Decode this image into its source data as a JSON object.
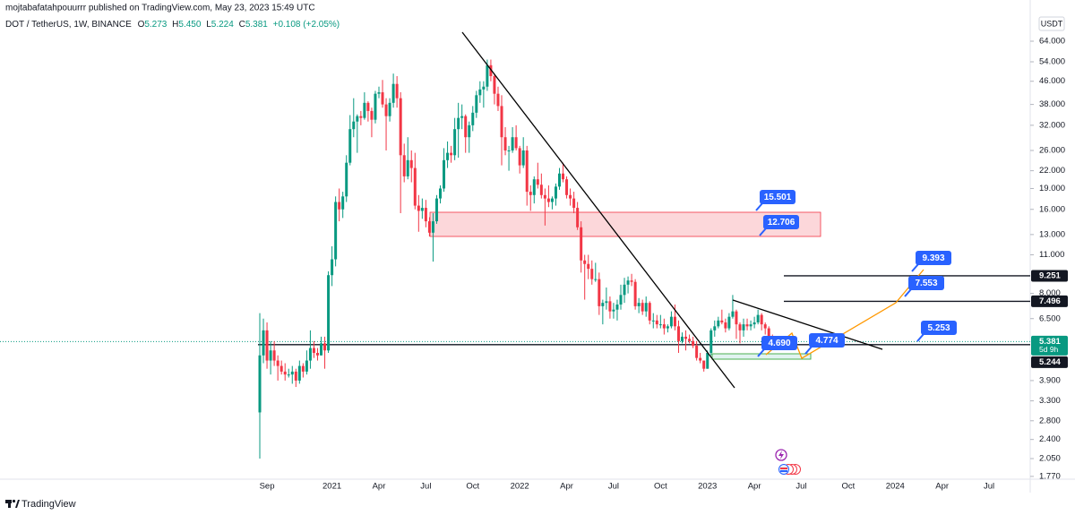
{
  "header": {
    "byline": "mojtabafatahpouurrr published on TradingView.com, May 23, 2023 15:49 UTC",
    "symbol": "DOT / TetherUS, 1W, BINANCE",
    "ohlc": [
      {
        "key": "O",
        "value": "5.273"
      },
      {
        "key": "H",
        "value": "5.450"
      },
      {
        "key": "L",
        "value": "5.224"
      },
      {
        "key": "C",
        "value": "5.381"
      }
    ],
    "change": "+0.108 (+2.05%)",
    "brand": "TradingView"
  },
  "chart_data": {
    "type": "candlestick",
    "currency": "USDT",
    "log_scale": true,
    "up_color": "#089981",
    "down_color": "#f23645",
    "ylim": [
      1.73,
      78.7
    ],
    "yticks": [
      {
        "value": 1.77,
        "label": "1.770"
      },
      {
        "value": 2.05,
        "label": "2.050"
      },
      {
        "value": 2.4,
        "label": "2.400"
      },
      {
        "value": 2.8,
        "label": "2.800"
      },
      {
        "value": 3.3,
        "label": "3.300"
      },
      {
        "value": 3.9,
        "label": "3.900"
      },
      {
        "value": 6.5,
        "label": "6.500"
      },
      {
        "value": 8,
        "label": "8.000"
      },
      {
        "value": 11,
        "label": "11.000"
      },
      {
        "value": 13,
        "label": "13.000"
      },
      {
        "value": 16,
        "label": "16.000"
      },
      {
        "value": 19,
        "label": "19.000"
      },
      {
        "value": 22,
        "label": "22.000"
      },
      {
        "value": 26,
        "label": "26.000"
      },
      {
        "value": 32,
        "label": "32.000"
      },
      {
        "value": 38,
        "label": "38.000"
      },
      {
        "value": 46,
        "label": "46.000"
      },
      {
        "value": 54,
        "label": "54.000"
      },
      {
        "value": 64,
        "label": "64.000"
      }
    ],
    "categories": [
      null,
      null,
      "Sep",
      null,
      null,
      null,
      null,
      null,
      null,
      null,
      null,
      null,
      null,
      null,
      null,
      null,
      null,
      null,
      null,
      null,
      "2021",
      null,
      null,
      null,
      null,
      null,
      null,
      null,
      null,
      null,
      null,
      null,
      null,
      "Apr",
      null,
      null,
      null,
      null,
      null,
      null,
      null,
      null,
      null,
      null,
      null,
      null,
      "Jul",
      null,
      null,
      null,
      null,
      null,
      null,
      null,
      null,
      null,
      null,
      null,
      null,
      "Oct",
      null,
      null,
      null,
      null,
      null,
      null,
      null,
      null,
      null,
      null,
      null,
      null,
      "2022",
      null,
      null,
      null,
      null,
      null,
      null,
      null,
      null,
      null,
      null,
      null,
      null,
      "Apr",
      null,
      null,
      null,
      null,
      null,
      null,
      null,
      null,
      null,
      null,
      null,
      null,
      "Jul",
      null,
      null,
      null,
      null,
      null,
      null,
      null,
      null,
      null,
      null,
      null,
      null,
      "Oct",
      null,
      null,
      null,
      null,
      null,
      null,
      null,
      null,
      null,
      null,
      null,
      null,
      "2023",
      null,
      null,
      null,
      null,
      null,
      null,
      null,
      null,
      null,
      null,
      null,
      null,
      "Apr",
      null,
      null,
      null,
      null,
      null,
      null,
      null,
      null,
      null,
      null,
      null,
      null,
      "Jul",
      null,
      null,
      null,
      null,
      null,
      null,
      null,
      null,
      null,
      null,
      null,
      null,
      "Oct",
      null,
      null,
      null,
      null,
      null,
      null,
      null,
      null,
      null,
      null,
      null,
      null,
      "2024",
      null,
      null,
      null,
      null,
      null,
      null,
      null,
      null,
      null,
      null,
      null,
      null,
      "Apr",
      null,
      null,
      null,
      null,
      null,
      null,
      null,
      null,
      null,
      null,
      null,
      null,
      "Jul",
      null,
      null,
      null,
      null,
      null,
      null,
      null,
      null
    ],
    "open": [
      3.0,
      4.8,
      5.9,
      4.6,
      5.0,
      4.6,
      4.4,
      4.2,
      4.1,
      4.1,
      4.2,
      3.9,
      4.4,
      4.2,
      4.6,
      5.1,
      4.9,
      4.8,
      5.3,
      5.0,
      9.3,
      10.6,
      17.0,
      16.0,
      17.8,
      23.5,
      31.0,
      33.0,
      34.5,
      34.0,
      38.5,
      36.0,
      33.5,
      41.5,
      42.0,
      38.0,
      34.5,
      38.5,
      45.0,
      40.0,
      25.0,
      21.0,
      24.0,
      22.5,
      16.5,
      15.8,
      16.2,
      14.5,
      13.2,
      14.5,
      17.5,
      19.0,
      24.0,
      25.5,
      25.0,
      31.0,
      34.0,
      34.5,
      29.0,
      32.0,
      35.5,
      41.0,
      43.0,
      44.0,
      52.5,
      48.0,
      41.5,
      37.5,
      29.0,
      26.0,
      26.0,
      29.0,
      26.5,
      23.0,
      26.0,
      18.5,
      18.0,
      20.5,
      19.6,
      18.0,
      17.5,
      17.0,
      17.5,
      19.3,
      21.5,
      20.5,
      18.0,
      17.5,
      16.2,
      13.8,
      10.5,
      10.2,
      9.8,
      9.0,
      9.0,
      7.2,
      7.4,
      7.5,
      6.9,
      7.0,
      7.3,
      7.9,
      8.6,
      8.9,
      8.8,
      7.2,
      7.4,
      6.9,
      7.4,
      6.4,
      6.4,
      6.2,
      6.2,
      6.0,
      6.1,
      6.6,
      6.1,
      5.4,
      5.6,
      5.5,
      5.4,
      5.2,
      4.7,
      4.6,
      4.3,
      4.9,
      5.9,
      6.1,
      6.4,
      6.3,
      6.0,
      6.6,
      6.9,
      6.2,
      5.9,
      6.2,
      6.1,
      6.2,
      6.3,
      6.7,
      6.2,
      6.0,
      5.5,
      5.3,
      5.273,
      null,
      null,
      null,
      null,
      null,
      null,
      null,
      null,
      null,
      null,
      null,
      null,
      null,
      null,
      null,
      null,
      null,
      null,
      null,
      null,
      null,
      null,
      null,
      null,
      null,
      null,
      null,
      null,
      null,
      null,
      null,
      null,
      null,
      null,
      null,
      null,
      null,
      null,
      null,
      null,
      null,
      null,
      null,
      null,
      null,
      null,
      null,
      null,
      null,
      null,
      null,
      null,
      null,
      null,
      null,
      null,
      null,
      null,
      null,
      null,
      null,
      null,
      null,
      null,
      null,
      null
    ],
    "high": [
      6.8,
      6.5,
      6.3,
      5.4,
      5.4,
      4.8,
      4.6,
      4.5,
      4.3,
      4.4,
      4.3,
      4.6,
      4.5,
      5.0,
      5.9,
      5.4,
      5.1,
      5.6,
      5.6,
      9.6,
      11.8,
      17.8,
      19.0,
      18.5,
      25.0,
      34.8,
      40.0,
      35.0,
      36.0,
      42.0,
      39.0,
      37.0,
      42.5,
      44.0,
      46.5,
      40.0,
      40.0,
      49.0,
      48.0,
      42.0,
      27.5,
      29.0,
      26.0,
      25.5,
      18.0,
      17.5,
      17.3,
      15.0,
      15.5,
      18.0,
      19.5,
      26.5,
      28.0,
      27.0,
      34.0,
      38.5,
      38.0,
      35.0,
      33.0,
      37.5,
      42.5,
      46.0,
      46.0,
      55.0,
      55.0,
      49.0,
      44.0,
      41.0,
      31.5,
      27.0,
      31.5,
      32.0,
      27.0,
      29.0,
      27.0,
      19.5,
      21.0,
      23.5,
      21.5,
      19.0,
      19.5,
      17.8,
      19.8,
      22.5,
      23.5,
      21.0,
      19.0,
      18.5,
      17.0,
      14.5,
      11.0,
      11.0,
      10.5,
      10.3,
      9.5,
      7.6,
      8.4,
      7.8,
      7.4,
      7.6,
      8.6,
      9.1,
      9.2,
      9.4,
      9.0,
      7.7,
      7.6,
      7.8,
      7.5,
      6.8,
      6.7,
      6.7,
      6.5,
      6.2,
      6.9,
      7.3,
      6.4,
      5.8,
      5.9,
      5.7,
      5.6,
      5.4,
      4.9,
      4.6,
      5.0,
      6.0,
      6.4,
      6.6,
      7.0,
      6.5,
      6.8,
      7.9,
      7.0,
      6.3,
      6.5,
      6.5,
      6.4,
      6.6,
      7.0,
      6.8,
      6.3,
      6.1,
      5.7,
      5.6,
      5.45,
      null,
      null,
      null,
      null,
      null,
      null,
      null,
      null,
      null,
      null,
      null,
      null,
      null,
      null,
      null,
      null,
      null,
      null,
      null,
      null,
      null,
      null,
      null,
      null,
      null,
      null,
      null,
      null,
      null,
      null,
      null,
      null,
      null,
      null,
      null,
      null,
      null,
      null,
      null,
      null,
      null,
      null,
      null,
      null,
      null,
      null,
      null,
      null,
      null,
      null,
      null,
      null,
      null,
      null,
      null,
      null,
      null,
      null,
      null,
      null,
      null,
      null,
      null,
      null,
      null,
      null
    ],
    "low": [
      2.05,
      4.5,
      4.3,
      4.1,
      4.4,
      3.9,
      4.1,
      3.9,
      4.0,
      3.8,
      3.7,
      3.8,
      4.0,
      4.1,
      4.3,
      4.7,
      4.6,
      4.8,
      4.3,
      4.9,
      8.5,
      10.0,
      14.5,
      14.9,
      17.0,
      23.0,
      29.0,
      25.5,
      32.0,
      33.5,
      33.0,
      29.0,
      32.5,
      40.0,
      37.0,
      26.0,
      33.0,
      37.0,
      37.0,
      15.5,
      20.0,
      20.5,
      20.0,
      16.0,
      13.3,
      14.8,
      13.8,
      12.8,
      10.4,
      14.2,
      16.8,
      18.5,
      22.5,
      23.5,
      24.0,
      24.5,
      31.0,
      25.5,
      25.5,
      30.5,
      34.0,
      38.5,
      37.0,
      42.5,
      46.0,
      38.0,
      36.0,
      23.0,
      25.0,
      22.0,
      25.5,
      26.0,
      21.5,
      22.5,
      16.5,
      15.8,
      16.8,
      19.0,
      17.5,
      14.0,
      16.3,
      16.0,
      16.5,
      18.8,
      20.0,
      17.5,
      16.5,
      15.5,
      13.5,
      9.5,
      7.6,
      9.0,
      8.6,
      8.8,
      6.7,
      6.2,
      7.0,
      6.5,
      6.5,
      6.4,
      7.0,
      7.4,
      8.0,
      8.5,
      7.0,
      6.8,
      6.7,
      6.6,
      6.2,
      6.0,
      6.0,
      6.0,
      5.7,
      5.8,
      6.0,
      5.9,
      4.9,
      5.3,
      5.0,
      5.3,
      5.1,
      4.6,
      4.5,
      4.2,
      4.3,
      4.8,
      5.6,
      6.0,
      6.2,
      5.8,
      5.9,
      6.5,
      5.5,
      5.3,
      5.6,
      5.9,
      5.9,
      6.0,
      6.2,
      5.9,
      5.7,
      5.3,
      5.2,
      5.1,
      5.224,
      null,
      null,
      null,
      null,
      null,
      null,
      null,
      null,
      null,
      null,
      null,
      null,
      null,
      null,
      null,
      null,
      null,
      null,
      null,
      null,
      null,
      null,
      null,
      null,
      null,
      null,
      null,
      null,
      null,
      null,
      null,
      null,
      null,
      null,
      null,
      null,
      null,
      null,
      null,
      null,
      null,
      null,
      null,
      null,
      null,
      null,
      null,
      null,
      null,
      null,
      null,
      null,
      null,
      null,
      null,
      null,
      null,
      null,
      null,
      null,
      null,
      null,
      null,
      null,
      null,
      null
    ],
    "close": [
      4.8,
      5.9,
      4.6,
      5.0,
      4.6,
      4.4,
      4.2,
      4.1,
      4.1,
      4.2,
      3.9,
      4.4,
      4.2,
      4.6,
      5.1,
      4.9,
      4.8,
      5.3,
      5.0,
      9.3,
      10.6,
      17.0,
      16.0,
      17.8,
      23.5,
      31.0,
      33.0,
      34.5,
      34.0,
      38.5,
      36.0,
      33.5,
      41.5,
      42.0,
      38.0,
      34.5,
      38.5,
      45.0,
      40.0,
      25.0,
      21.0,
      24.0,
      22.5,
      16.5,
      15.8,
      16.2,
      14.5,
      13.2,
      14.5,
      17.5,
      19.0,
      24.0,
      25.5,
      25.0,
      31.0,
      34.0,
      34.5,
      29.0,
      32.0,
      35.5,
      41.0,
      43.0,
      44.0,
      52.5,
      48.0,
      41.5,
      37.5,
      29.0,
      26.0,
      26.0,
      29.0,
      26.5,
      23.0,
      26.0,
      18.5,
      18.0,
      20.5,
      19.6,
      18.0,
      17.5,
      17.0,
      17.5,
      19.3,
      21.5,
      20.5,
      18.0,
      17.5,
      16.2,
      13.8,
      10.5,
      10.2,
      9.8,
      9.0,
      9.0,
      7.2,
      7.4,
      7.5,
      6.9,
      7.0,
      7.3,
      7.9,
      8.6,
      8.9,
      8.8,
      7.2,
      7.4,
      6.9,
      7.4,
      6.4,
      6.4,
      6.2,
      6.2,
      6.0,
      6.1,
      6.6,
      6.1,
      5.4,
      5.6,
      5.5,
      5.4,
      5.2,
      4.7,
      4.6,
      4.3,
      4.9,
      5.9,
      6.1,
      6.4,
      6.3,
      6.0,
      6.6,
      6.9,
      6.2,
      5.9,
      6.2,
      6.1,
      6.2,
      6.3,
      6.7,
      6.2,
      6.0,
      5.5,
      5.3,
      5.273,
      5.381,
      null,
      null,
      null,
      null,
      null,
      null,
      null,
      null,
      null,
      null,
      null,
      null,
      null,
      null,
      null,
      null,
      null,
      null,
      null,
      null,
      null,
      null,
      null,
      null,
      null,
      null,
      null,
      null,
      null,
      null,
      null,
      null,
      null,
      null,
      null,
      null,
      null,
      null,
      null,
      null,
      null,
      null,
      null,
      null,
      null,
      null,
      null,
      null,
      null,
      null,
      null,
      null,
      null,
      null,
      null,
      null,
      null,
      null,
      null,
      null,
      null,
      null,
      null,
      null,
      null,
      null
    ],
    "price_tags": [
      {
        "value": 9.251,
        "color": "#131722"
      },
      {
        "value": 7.496,
        "color": "#131722"
      },
      {
        "value": 5.381,
        "color": "#089981",
        "countdown": "5d 9h"
      },
      {
        "value": 5.244,
        "color": "#131722"
      }
    ],
    "callout_color": "#2962ff",
    "callouts": [
      "15.501",
      "12.706",
      "9.393",
      "7.553",
      "5.253",
      "4.774",
      "4.690"
    ]
  }
}
